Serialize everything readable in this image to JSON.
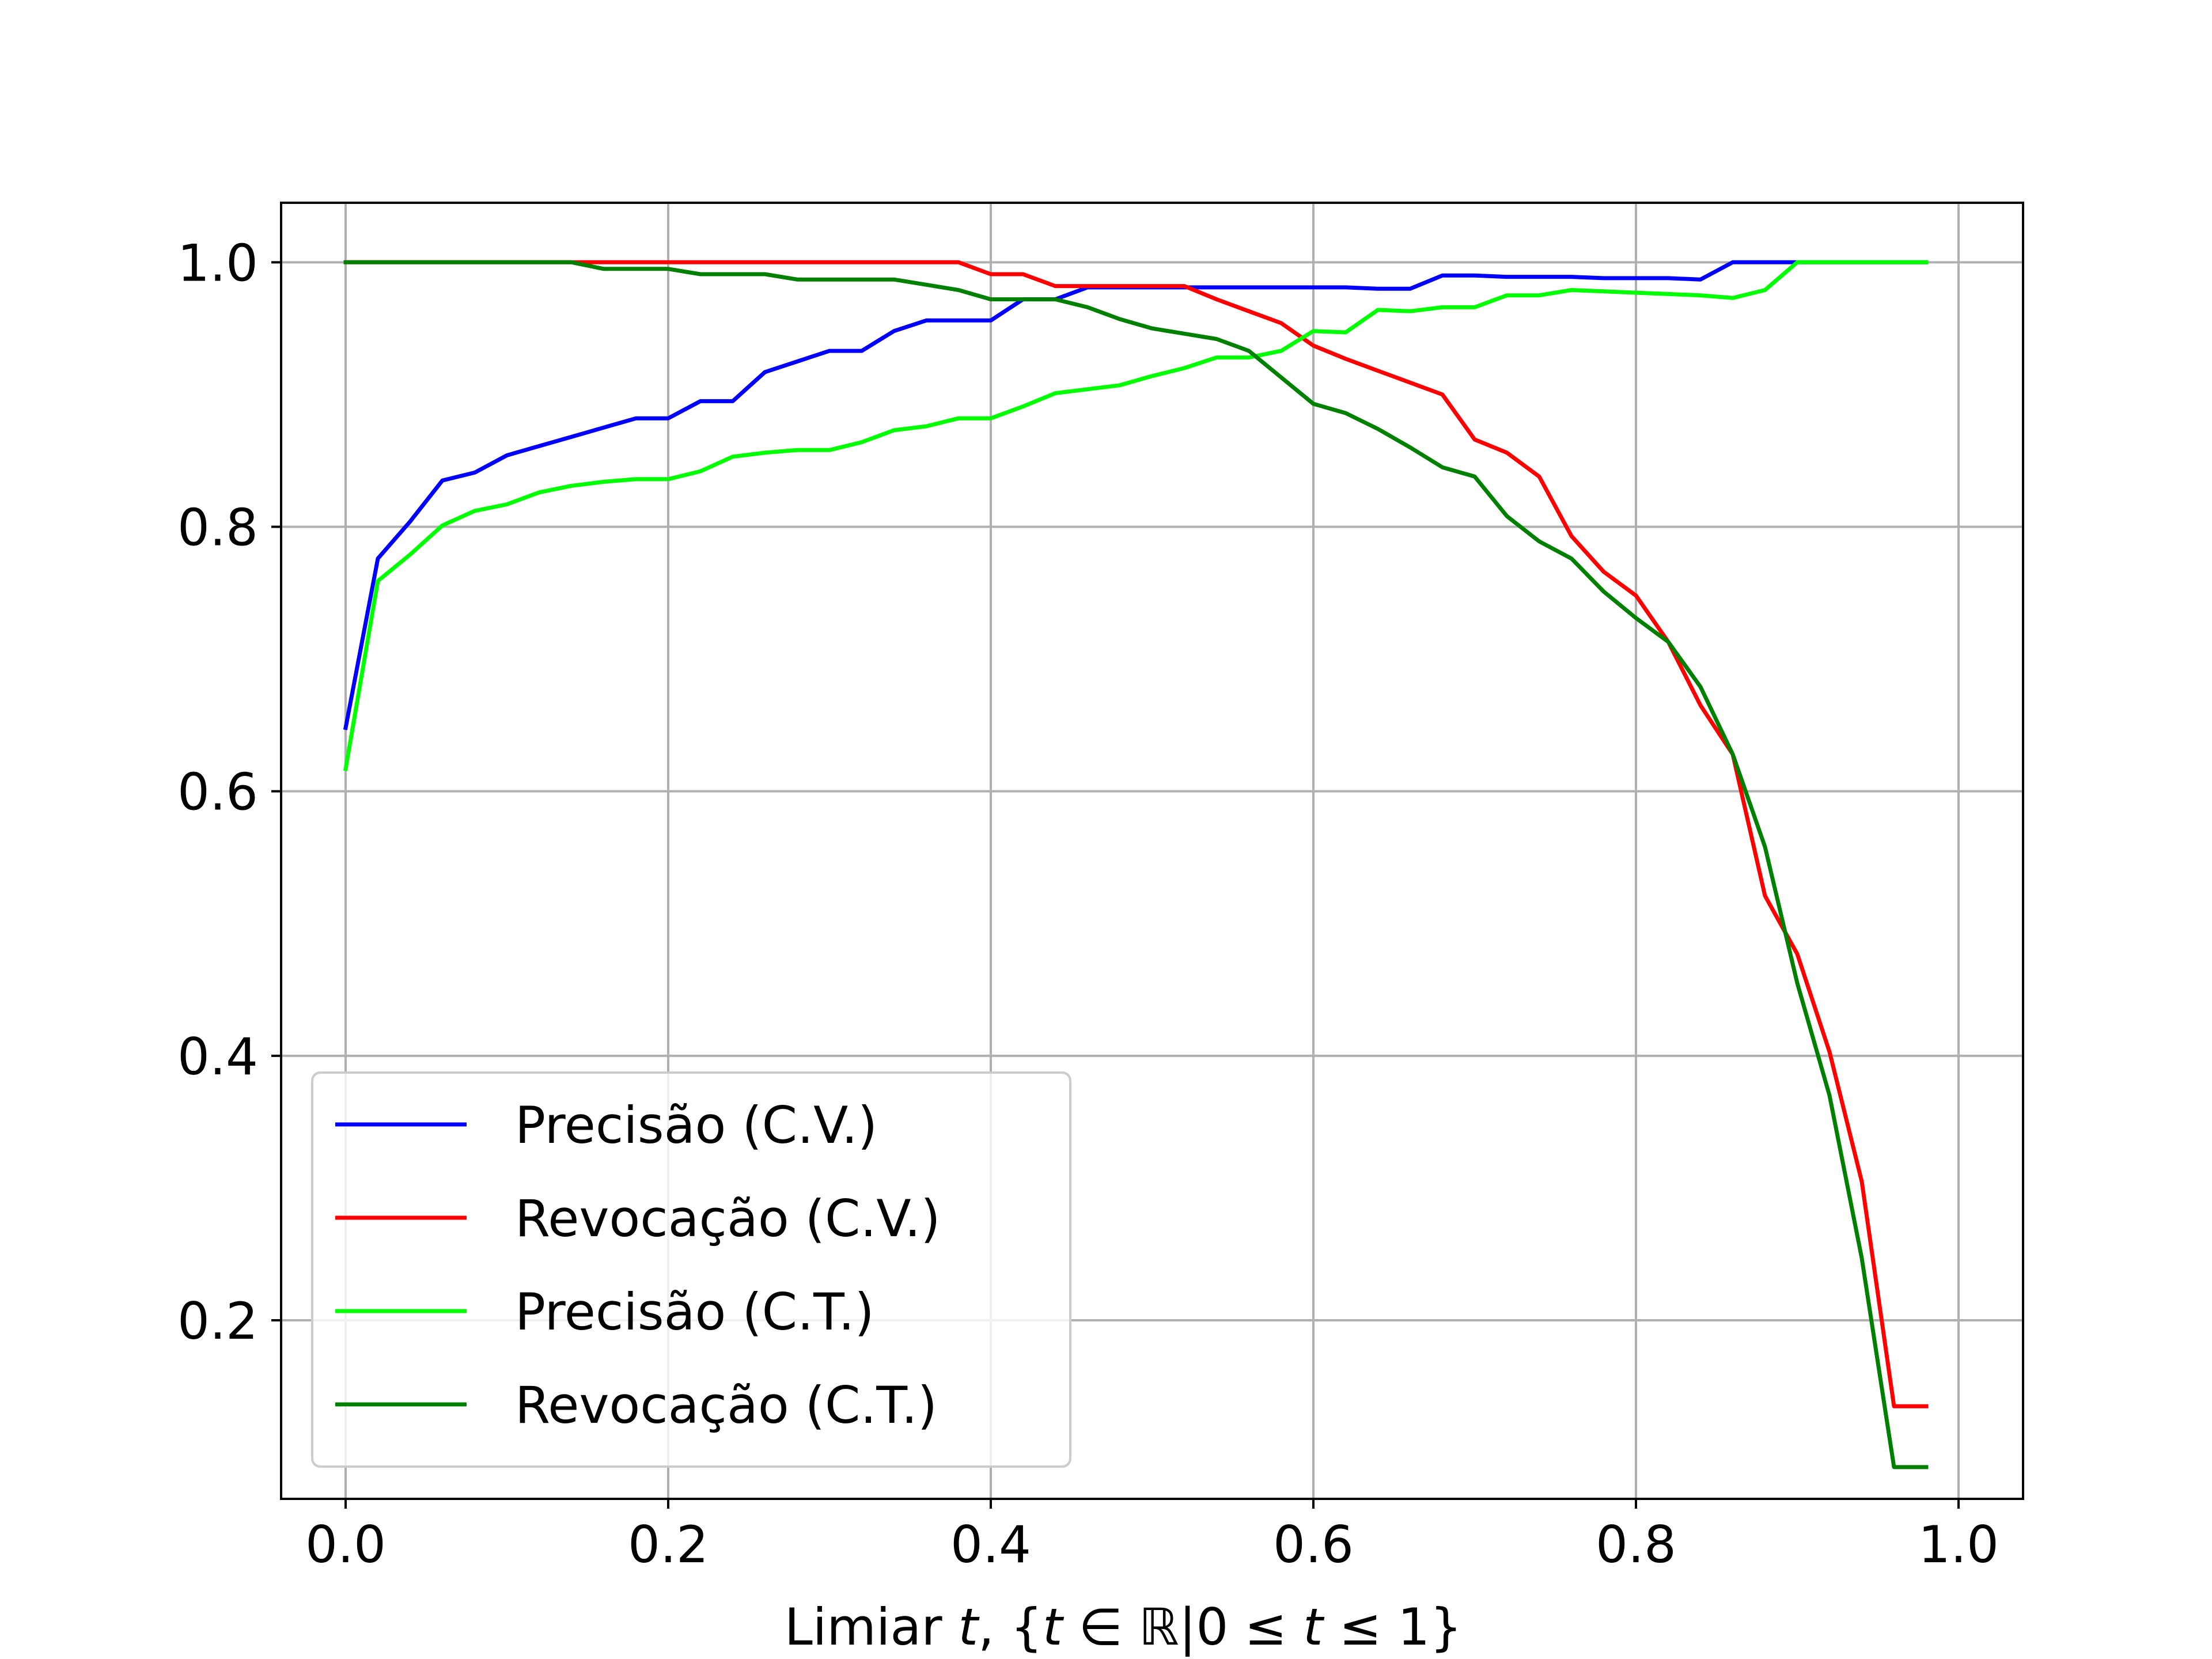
{
  "chart_data": {
    "type": "line",
    "title": "",
    "xlabel": "Limiar t, {t ∈ ℝ|0 ≤ t ≤ 1}",
    "xlabel_parts": {
      "pre": "Limiar ",
      "t1": "t",
      "mid1": ", {",
      "t2": "t",
      "mid2": " ∈ ℝ|0 ≤ ",
      "t3": "t",
      "post": " ≤ 1}"
    },
    "ylabel": "",
    "xlim": [
      -0.04,
      1.04
    ],
    "ylim": [
      0.065,
      1.045
    ],
    "xticks": [
      0.0,
      0.2,
      0.4,
      0.6,
      0.8,
      1.0
    ],
    "xtick_labels": [
      "0.0",
      "0.2",
      "0.4",
      "0.6",
      "0.8",
      "1.0"
    ],
    "yticks": [
      0.2,
      0.4,
      0.6,
      0.8,
      1.0
    ],
    "ytick_labels": [
      "0.2",
      "0.4",
      "0.6",
      "0.8",
      "1.0"
    ],
    "grid": true,
    "legend_position": "lower-left",
    "series": [
      {
        "name": "Precisão (C.V.)",
        "color": "#0000ff",
        "x": [
          0.0,
          0.02,
          0.04,
          0.06,
          0.08,
          0.1,
          0.12,
          0.14,
          0.16,
          0.18,
          0.2,
          0.22,
          0.24,
          0.26,
          0.28,
          0.3,
          0.32,
          0.34,
          0.36,
          0.38,
          0.4,
          0.42,
          0.44,
          0.46,
          0.48,
          0.5,
          0.52,
          0.54,
          0.56,
          0.58,
          0.6,
          0.62,
          0.64,
          0.66,
          0.68,
          0.7,
          0.72,
          0.74,
          0.76,
          0.78,
          0.8,
          0.82,
          0.84,
          0.86,
          0.88,
          0.9,
          0.92,
          0.94,
          0.96,
          0.98
        ],
        "y": [
          0.648,
          0.776,
          0.804,
          0.835,
          0.841,
          0.854,
          0.861,
          0.868,
          0.875,
          0.882,
          0.882,
          0.895,
          0.895,
          0.917,
          0.925,
          0.933,
          0.933,
          0.948,
          0.956,
          0.956,
          0.956,
          0.972,
          0.972,
          0.981,
          0.981,
          0.981,
          0.981,
          0.981,
          0.981,
          0.981,
          0.981,
          0.981,
          0.98,
          0.98,
          0.99,
          0.99,
          0.989,
          0.989,
          0.989,
          0.988,
          0.988,
          0.988,
          0.987,
          1.0,
          1.0,
          1.0,
          1.0,
          1.0,
          1.0,
          1.0
        ]
      },
      {
        "name": "Revocação (C.V.)",
        "color": "#ff0000",
        "x": [
          0.0,
          0.02,
          0.04,
          0.06,
          0.08,
          0.1,
          0.12,
          0.14,
          0.16,
          0.18,
          0.2,
          0.22,
          0.24,
          0.26,
          0.28,
          0.3,
          0.32,
          0.34,
          0.36,
          0.38,
          0.4,
          0.42,
          0.44,
          0.46,
          0.48,
          0.5,
          0.52,
          0.54,
          0.56,
          0.58,
          0.6,
          0.62,
          0.64,
          0.66,
          0.68,
          0.7,
          0.72,
          0.74,
          0.76,
          0.78,
          0.8,
          0.82,
          0.84,
          0.86,
          0.88,
          0.9,
          0.92,
          0.94,
          0.96,
          0.98
        ],
        "y": [
          1.0,
          1.0,
          1.0,
          1.0,
          1.0,
          1.0,
          1.0,
          1.0,
          1.0,
          1.0,
          1.0,
          1.0,
          1.0,
          1.0,
          1.0,
          1.0,
          1.0,
          1.0,
          1.0,
          1.0,
          0.991,
          0.991,
          0.982,
          0.982,
          0.982,
          0.982,
          0.982,
          0.972,
          0.963,
          0.954,
          0.937,
          0.927,
          0.918,
          0.909,
          0.9,
          0.866,
          0.856,
          0.838,
          0.793,
          0.766,
          0.748,
          0.713,
          0.665,
          0.628,
          0.521,
          0.477,
          0.403,
          0.305,
          0.135,
          0.135
        ]
      },
      {
        "name": "Precisão (C.T.)",
        "color": "#00ff00",
        "x": [
          0.0,
          0.02,
          0.04,
          0.06,
          0.08,
          0.1,
          0.12,
          0.14,
          0.16,
          0.18,
          0.2,
          0.22,
          0.24,
          0.26,
          0.28,
          0.3,
          0.32,
          0.34,
          0.36,
          0.38,
          0.4,
          0.42,
          0.44,
          0.46,
          0.48,
          0.5,
          0.52,
          0.54,
          0.56,
          0.58,
          0.6,
          0.62,
          0.64,
          0.66,
          0.68,
          0.7,
          0.72,
          0.74,
          0.76,
          0.78,
          0.8,
          0.82,
          0.84,
          0.86,
          0.88,
          0.9,
          0.92,
          0.94,
          0.96,
          0.98
        ],
        "y": [
          0.617,
          0.759,
          0.779,
          0.801,
          0.812,
          0.817,
          0.826,
          0.831,
          0.834,
          0.836,
          0.836,
          0.842,
          0.853,
          0.856,
          0.858,
          0.858,
          0.864,
          0.873,
          0.876,
          0.882,
          0.882,
          0.891,
          0.901,
          0.904,
          0.907,
          0.914,
          0.92,
          0.928,
          0.928,
          0.933,
          0.948,
          0.947,
          0.964,
          0.963,
          0.966,
          0.966,
          0.975,
          0.975,
          0.979,
          0.978,
          0.977,
          0.976,
          0.975,
          0.973,
          0.979,
          1.0,
          1.0,
          1.0,
          1.0,
          1.0
        ]
      },
      {
        "name": "Revocação (C.T.)",
        "color": "#008000",
        "x": [
          0.0,
          0.02,
          0.04,
          0.06,
          0.08,
          0.1,
          0.12,
          0.14,
          0.16,
          0.18,
          0.2,
          0.22,
          0.24,
          0.26,
          0.28,
          0.3,
          0.32,
          0.34,
          0.36,
          0.38,
          0.4,
          0.42,
          0.44,
          0.46,
          0.48,
          0.5,
          0.52,
          0.54,
          0.56,
          0.58,
          0.6,
          0.62,
          0.64,
          0.66,
          0.68,
          0.7,
          0.72,
          0.74,
          0.76,
          0.78,
          0.8,
          0.82,
          0.84,
          0.86,
          0.88,
          0.9,
          0.92,
          0.94,
          0.96,
          0.98
        ],
        "y": [
          1.0,
          1.0,
          1.0,
          1.0,
          1.0,
          1.0,
          1.0,
          1.0,
          0.995,
          0.995,
          0.995,
          0.991,
          0.991,
          0.991,
          0.987,
          0.987,
          0.987,
          0.987,
          0.983,
          0.979,
          0.972,
          0.972,
          0.972,
          0.966,
          0.957,
          0.95,
          0.946,
          0.942,
          0.933,
          0.913,
          0.893,
          0.886,
          0.874,
          0.86,
          0.845,
          0.838,
          0.808,
          0.789,
          0.776,
          0.751,
          0.731,
          0.713,
          0.679,
          0.628,
          0.558,
          0.455,
          0.37,
          0.247,
          0.089,
          0.089
        ]
      }
    ]
  }
}
